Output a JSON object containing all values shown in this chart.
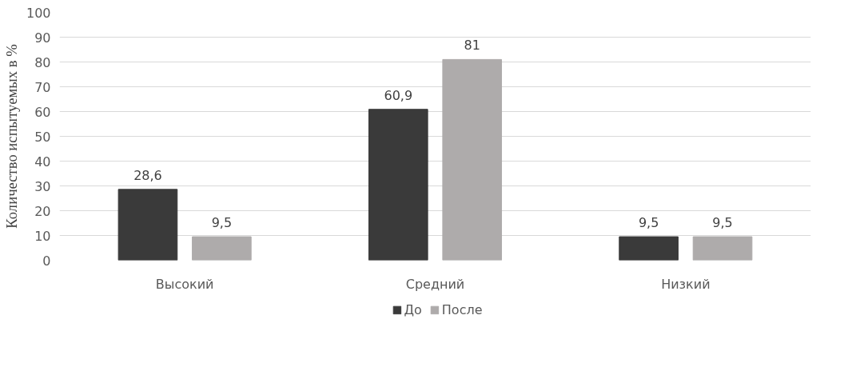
{
  "chart_data": {
    "type": "bar",
    "ylabel": "Количество испытуемых в %",
    "categories": [
      "Высокий",
      "Средний",
      "Низкий"
    ],
    "series": [
      {
        "name": "До",
        "color": "#3a3a3a",
        "values": [
          28.6,
          60.9,
          9.5
        ],
        "value_labels": [
          "28,6",
          "60,9",
          "9,5"
        ]
      },
      {
        "name": "После",
        "color": "#aeabab",
        "values": [
          9.5,
          81,
          9.5
        ],
        "value_labels": [
          "9,5",
          "81",
          "9,5"
        ]
      }
    ],
    "ylim": [
      0,
      100
    ],
    "yticks": [
      0,
      10,
      20,
      30,
      40,
      50,
      60,
      70,
      80,
      90,
      100
    ],
    "grid": "y",
    "legend": "bottom"
  }
}
